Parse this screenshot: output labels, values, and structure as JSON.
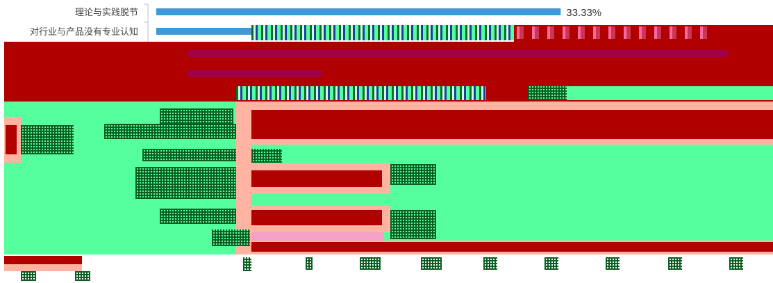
{
  "chart_data": {
    "type": "bar",
    "orientation": "horizontal",
    "categories": [
      "理论与实践脱节",
      "对行业与产品没有专业认知"
    ],
    "values": [
      33.33,
      null
    ],
    "data_labels": [
      "33.33%",
      ""
    ],
    "bar_color": "#3d9ad6",
    "xlim": [
      0,
      100
    ],
    "title": "",
    "xlabel": "",
    "ylabel": "",
    "grid": false,
    "legend": "none"
  },
  "colors": {
    "bar": "#3d9ad6",
    "axis": "#bfbfbf",
    "glitch_red": "#b00000",
    "glitch_green": "#55ff9e"
  }
}
